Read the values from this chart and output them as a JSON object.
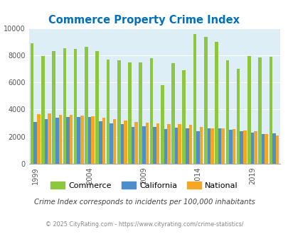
{
  "title": "Commerce Property Crime Index",
  "subtitle": "Crime Index corresponds to incidents per 100,000 inhabitants",
  "footer": "© 2025 CityRating.com - https://www.cityrating.com/crime-statistics/",
  "years": [
    1999,
    2000,
    2001,
    2002,
    2003,
    2004,
    2005,
    2006,
    2007,
    2008,
    2009,
    2010,
    2011,
    2012,
    2013,
    2014,
    2015,
    2016,
    2017,
    2018,
    2019,
    2020,
    2021
  ],
  "commerce": [
    8900,
    7950,
    8300,
    8500,
    8450,
    8600,
    8300,
    7700,
    7650,
    7450,
    7450,
    7800,
    5800,
    7400,
    6900,
    9550,
    9350,
    9000,
    7650,
    7000,
    7950,
    7850,
    7900
  ],
  "california": [
    3100,
    3280,
    3380,
    3430,
    3470,
    3450,
    3120,
    3000,
    2900,
    2720,
    2750,
    2720,
    2580,
    2680,
    2620,
    2400,
    2620,
    2600,
    2500,
    2420,
    2290,
    2200,
    2260
  ],
  "national": [
    3650,
    3700,
    3620,
    3600,
    3540,
    3520,
    3400,
    3280,
    3200,
    3060,
    3030,
    3000,
    2950,
    2900,
    2850,
    2700,
    2620,
    2590,
    2540,
    2460,
    2380,
    2190,
    2100
  ],
  "commerce_color": "#8dc63f",
  "california_color": "#4d8fcc",
  "national_color": "#f5a623",
  "bg_color": "#deeef6",
  "title_color": "#0070c0",
  "subtitle_color": "#444444",
  "footer_color": "#888888",
  "ylim": [
    0,
    10000
  ],
  "yticks": [
    0,
    2000,
    4000,
    6000,
    8000,
    10000
  ],
  "xtick_years": [
    1999,
    2004,
    2009,
    2014,
    2019
  ]
}
